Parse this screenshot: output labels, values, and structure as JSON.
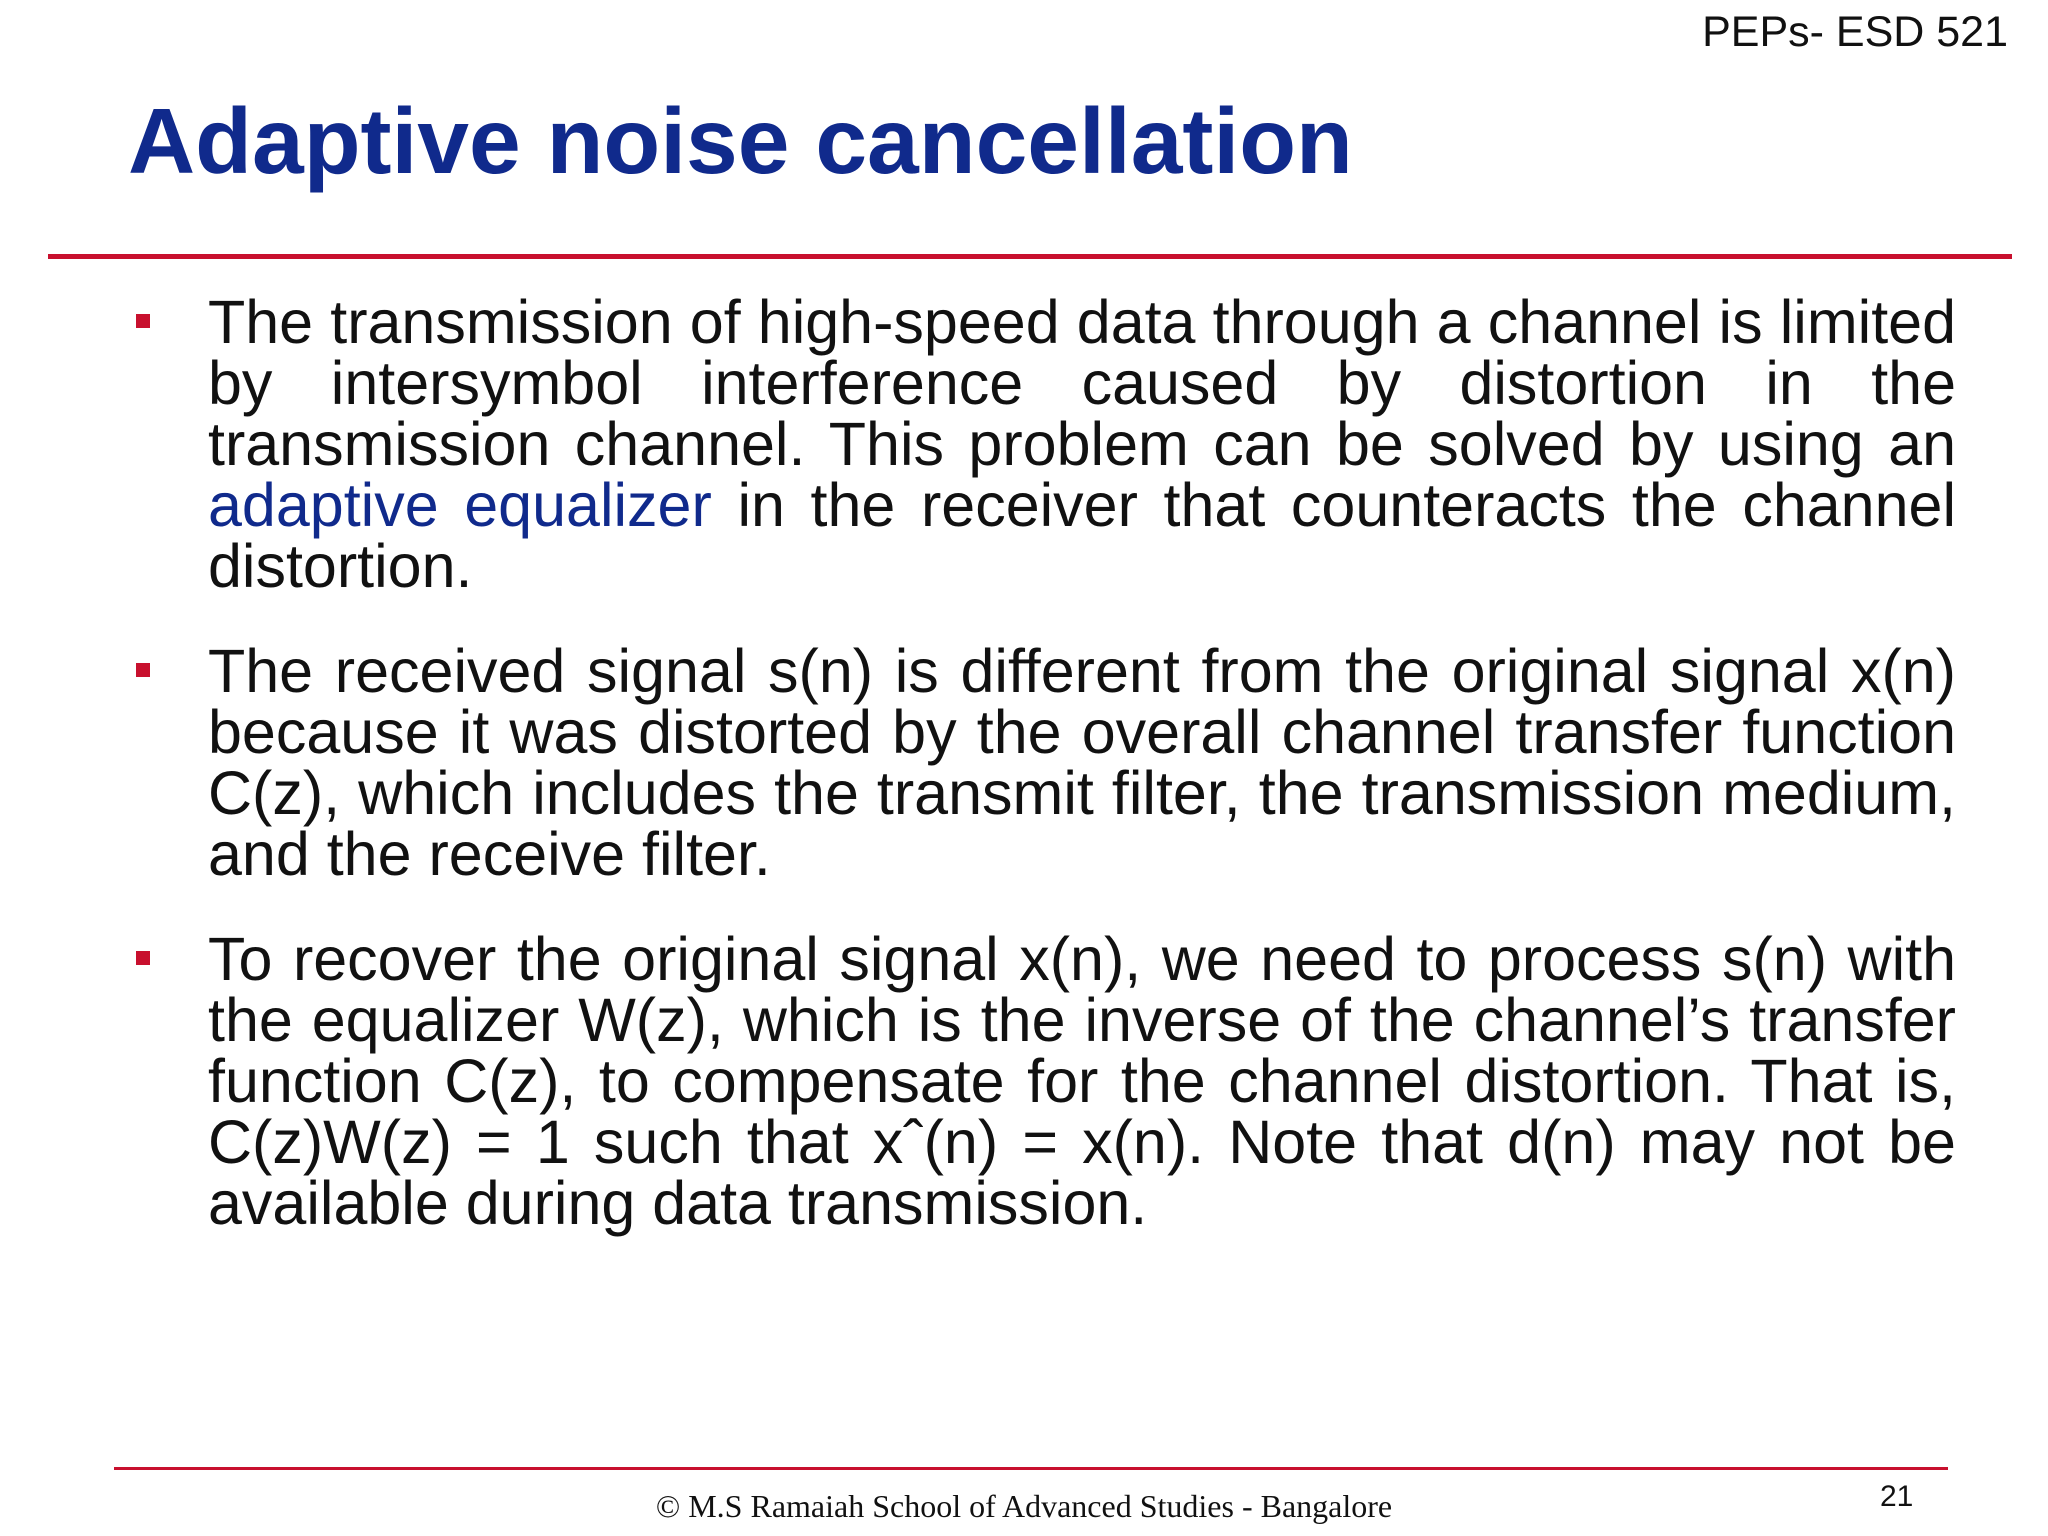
{
  "header": {
    "course_code": "PEPs- ESD 521",
    "title": "Adaptive noise cancellation"
  },
  "bullets": [
    {
      "lead": "The transmission of high-speed data through a channel is limited by intersymbol interference caused by distortion in the transmission channel. This problem can be solved by using an ",
      "highlight": "adaptive equalizer",
      "tail": " in the receiver that counteracts the channel distortion."
    },
    {
      "text": "The received signal s(n) is different from the original signal x(n) because it was distorted by the overall channel transfer function C(z), which includes the transmit filter, the transmission medium, and the receive filter."
    },
    {
      "text": "To recover the original signal x(n), we need to process s(n) with the equalizer W(z), which is the inverse of the channel’s transfer function C(z), to compensate for the channel distortion. That is, C(z)W(z) = 1 such that xˆ(n) = x(n). Note that d(n) may not be available during data transmission."
    }
  ],
  "footer": {
    "copyright": "© M.S Ramaiah School of Advanced Studies - Bangalore",
    "page_number": "21"
  },
  "colors": {
    "title": "#102a8c",
    "accent_rule": "#c8102e",
    "highlight": "#102a8c"
  }
}
